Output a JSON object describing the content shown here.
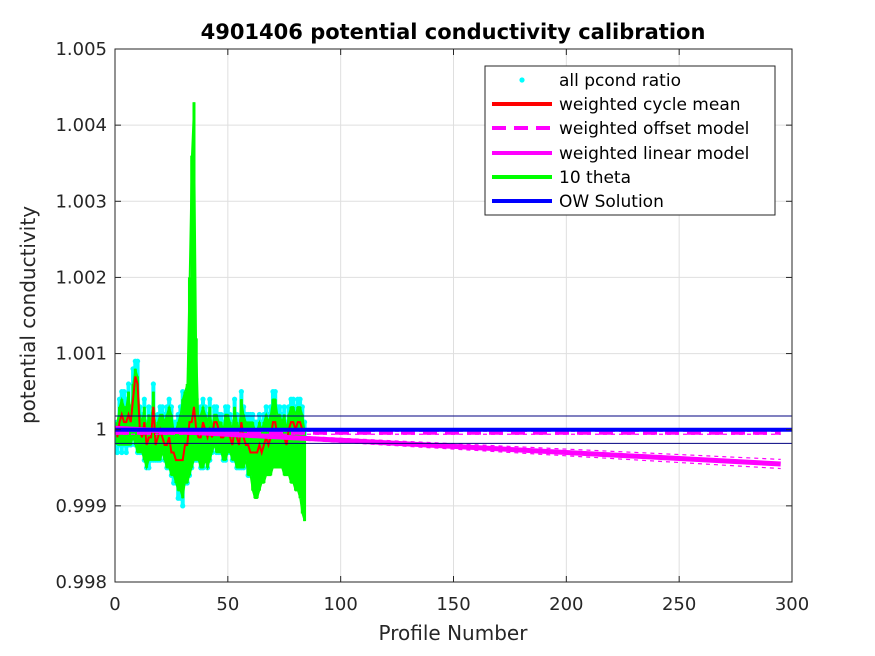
{
  "chart_data": {
    "type": "line",
    "title": "4901406 potential conductivity calibration",
    "xlabel": "Profile Number",
    "ylabel": "potential conductivity",
    "xlim": [
      0,
      300
    ],
    "ylim": [
      0.998,
      1.005
    ],
    "xticks": [
      "0",
      "50",
      "100",
      "150",
      "200",
      "250",
      "300"
    ],
    "yticks": [
      "0.998",
      "0.999",
      "1",
      "1.001",
      "1.002",
      "1.003",
      "1.004",
      "1.005"
    ],
    "xtick_values": [
      0,
      50,
      100,
      150,
      200,
      250,
      300
    ],
    "ytick_values": [
      0.998,
      0.999,
      1.0,
      1.001,
      1.002,
      1.003,
      1.004,
      1.005
    ],
    "grid": true,
    "legend_position": "top-right",
    "legend": [
      {
        "label": "all pcond ratio",
        "style": "dots",
        "color": "#00ffff"
      },
      {
        "label": "weighted cycle mean",
        "style": "solid",
        "color": "#ff0000"
      },
      {
        "label": "weighted offset model",
        "style": "dashed",
        "color": "#ff00ff"
      },
      {
        "label": "weighted linear model",
        "style": "solid",
        "color": "#ff00ff"
      },
      {
        "label": "10 theta",
        "style": "solid",
        "color": "#00ff00"
      },
      {
        "label": "OW Solution",
        "style": "solid",
        "color": "#0000ff"
      }
    ],
    "series": [
      {
        "name": "all pcond ratio",
        "x": [
          1,
          2,
          3,
          4,
          5,
          6,
          7,
          8,
          9,
          10,
          11,
          12,
          13,
          14,
          15,
          16,
          17,
          18,
          19,
          20,
          21,
          22,
          23,
          24,
          25,
          26,
          27,
          28,
          29,
          30,
          31,
          32,
          33,
          34,
          35,
          36,
          37,
          38,
          39,
          40,
          41,
          42,
          43,
          44,
          45,
          46,
          47,
          48,
          49,
          50,
          51,
          52,
          53,
          54,
          55,
          56,
          57,
          58,
          59,
          60,
          61,
          62,
          63,
          64,
          65,
          66,
          67,
          68,
          69,
          70,
          71,
          72,
          73,
          74,
          75,
          76,
          77,
          78,
          79,
          80,
          81,
          82,
          83,
          84
        ],
        "y_upper": [
          1.0001,
          1.0004,
          1.0005,
          1.0005,
          1.0004,
          1.0006,
          1.0003,
          1.0008,
          1.0009,
          1.0009,
          1.0003,
          1.0002,
          1.0004,
          1.0001,
          1.0003,
          1.0002,
          1.0006,
          1.0001,
          1.0002,
          1.0003,
          1.0003,
          1.0002,
          1.0003,
          1.0004,
          1.0003,
          1.0001,
          1.0001,
          1.0002,
          1.0003,
          1.0005,
          1.0004,
          1.0003,
          1.0008,
          1.0007,
          1.0009,
          1.0004,
          1.0002,
          1.0003,
          1.0004,
          1.0003,
          1.0002,
          1.0004,
          1.0001,
          1.0003,
          1.0003,
          1.0002,
          1.0002,
          1.0001,
          1.0003,
          1.0003,
          1.0002,
          1.0001,
          1.0004,
          1.0002,
          1.0001,
          1.0005,
          1.0003,
          1.0002,
          1.0002,
          1.0002,
          1.0002,
          1.0001,
          1.0001,
          1.0002,
          1.0001,
          1.0002,
          1.0003,
          1.0002,
          1.0003,
          1.0005,
          1.0005,
          1.0003,
          1.0003,
          1.0002,
          1.0003,
          1.0001,
          1.0003,
          1.0004,
          1.0004,
          1.0003,
          1.0004,
          1.0004,
          1.0003,
          1.0001
        ],
        "y_lower": [
          0.9997,
          0.9998,
          0.9997,
          0.9998,
          0.9997,
          0.9998,
          0.9998,
          0.9999,
          0.9998,
          0.9997,
          0.9997,
          0.9997,
          0.9996,
          0.9995,
          0.9995,
          0.9996,
          0.9996,
          0.9996,
          0.9996,
          0.9996,
          0.9997,
          0.9996,
          0.9995,
          0.9995,
          0.9994,
          0.9993,
          0.9993,
          0.9991,
          0.9991,
          0.999,
          0.9993,
          0.9993,
          0.9994,
          0.9995,
          0.9996,
          0.9996,
          0.9996,
          0.9995,
          0.9995,
          0.9996,
          0.9995,
          0.9996,
          0.9997,
          0.9998,
          0.9997,
          0.9997,
          0.9997,
          0.9996,
          0.9996,
          0.9997,
          0.9997,
          0.9996,
          0.9996,
          0.9995,
          0.9995,
          0.9995,
          0.9995,
          0.9996,
          0.9994,
          0.9994,
          0.9994,
          0.9994,
          0.9994,
          0.9995,
          0.9995,
          0.9995,
          0.9996,
          0.9996,
          0.9996,
          0.9996,
          0.9996,
          0.9996,
          0.9996,
          0.9996,
          0.9995,
          0.9996,
          0.9997,
          0.9997,
          0.9997,
          0.9998,
          0.9998,
          0.9998,
          0.9998,
          0.9999
        ]
      },
      {
        "name": "weighted cycle mean",
        "x": [
          1,
          2,
          3,
          4,
          5,
          6,
          7,
          8,
          9,
          10,
          11,
          12,
          13,
          14,
          15,
          16,
          17,
          18,
          19,
          20,
          21,
          22,
          23,
          24,
          25,
          26,
          27,
          28,
          29,
          30,
          31,
          32,
          33,
          34,
          35,
          36,
          37,
          38,
          39,
          40,
          41,
          42,
          43,
          44,
          45,
          46,
          47,
          48,
          49,
          50,
          51,
          52,
          53,
          54,
          55,
          56,
          57,
          58,
          59,
          60,
          61,
          62,
          63,
          64,
          65,
          66,
          67,
          68,
          69,
          70,
          71,
          72,
          73,
          74,
          75,
          76,
          77,
          78,
          79,
          80,
          81,
          82,
          83,
          84
        ],
        "y": [
          0.9999,
          1.0001,
          1.0002,
          1.0001,
          1.0001,
          1.0002,
          1.0001,
          1.0004,
          1.0007,
          1.0006,
          1.0,
          0.9999,
          1.0001,
          0.9998,
          0.9999,
          0.9999,
          1.0003,
          0.9998,
          0.9999,
          1.0,
          0.9999,
          0.9998,
          0.9998,
          0.9999,
          0.9997,
          0.9997,
          0.9996,
          0.9996,
          0.9996,
          0.9996,
          0.9998,
          0.9998,
          1.0001,
          1.0001,
          1.0003,
          1.0,
          0.9999,
          0.9999,
          1.0001,
          1.0,
          0.9999,
          1.0,
          0.9999,
          1.0001,
          1.0001,
          1.0,
          0.9999,
          0.9999,
          1.0,
          1.0,
          0.9999,
          0.9998,
          1.0,
          0.9999,
          0.9998,
          1.0001,
          0.9999,
          0.9998,
          0.9998,
          0.9997,
          0.9997,
          0.9997,
          0.9997,
          0.9998,
          0.9997,
          0.9998,
          0.9999,
          0.9998,
          0.9999,
          1.0001,
          1.0001,
          0.9999,
          0.9999,
          0.9999,
          0.9999,
          0.9998,
          1.0,
          1.0001,
          1.0001,
          1.0,
          1.0001,
          1.0001,
          1.0,
          1.0
        ]
      },
      {
        "name": "10 theta",
        "x": [
          1,
          2,
          3,
          4,
          5,
          6,
          7,
          8,
          9,
          10,
          11,
          12,
          13,
          14,
          15,
          16,
          17,
          18,
          19,
          20,
          21,
          22,
          23,
          24,
          25,
          26,
          27,
          28,
          29,
          30,
          31,
          32,
          33,
          34,
          35,
          36,
          37,
          38,
          39,
          40,
          41,
          42,
          43,
          44,
          45,
          46,
          47,
          48,
          49,
          50,
          51,
          52,
          53,
          54,
          55,
          56,
          57,
          58,
          59,
          60,
          61,
          62,
          63,
          64,
          65,
          66,
          67,
          68,
          69,
          70,
          71,
          72,
          73,
          74,
          75,
          76,
          77,
          78,
          79,
          80,
          81,
          82,
          83,
          84
        ],
        "y_upper": [
          1.0001,
          1.0003,
          1.0004,
          1.0003,
          1.0003,
          1.0005,
          1.0002,
          1.0006,
          1.0008,
          1.0007,
          1.0002,
          1.0001,
          1.0003,
          1.0,
          1.0002,
          1.0001,
          1.0005,
          1.0,
          1.0001,
          1.0002,
          1.0002,
          1.0001,
          1.0002,
          1.0003,
          1.0002,
          1.0,
          1.0,
          1.0001,
          1.0002,
          1.0004,
          1.0005,
          1.0006,
          1.002,
          1.0036,
          1.0043,
          1.0012,
          1.0001,
          1.0002,
          1.0003,
          1.0002,
          1.0001,
          1.0003,
          1.0,
          1.0002,
          1.0002,
          1.0001,
          1.0001,
          1.0,
          1.0002,
          1.0002,
          1.0001,
          1.0,
          1.0003,
          1.0001,
          1.0,
          1.0004,
          1.0002,
          1.0001,
          1.0001,
          1.0001,
          1.0001,
          1.0,
          1.0,
          1.0001,
          1.0,
          1.0001,
          1.0002,
          1.0001,
          1.0002,
          1.0004,
          1.0004,
          1.0002,
          1.0002,
          1.0001,
          1.0002,
          1.0,
          1.0002,
          1.0003,
          1.0003,
          1.0002,
          1.0003,
          1.0003,
          1.0002,
          1.0
        ],
        "y_lower": [
          0.9998,
          0.9998,
          0.9998,
          0.9998,
          0.9998,
          0.9998,
          0.9998,
          0.9999,
          0.9998,
          0.9997,
          0.9997,
          0.9997,
          0.9996,
          0.9995,
          0.9996,
          0.9996,
          0.9996,
          0.9996,
          0.9996,
          0.9996,
          0.9997,
          0.9996,
          0.9995,
          0.9995,
          0.9994,
          0.9994,
          0.9993,
          0.9992,
          0.9992,
          0.9991,
          0.9993,
          0.9993,
          0.9994,
          0.9995,
          0.9996,
          0.9996,
          0.9996,
          0.9995,
          0.9995,
          0.9996,
          0.9995,
          0.9996,
          0.9997,
          0.9998,
          0.9997,
          0.9997,
          0.9997,
          0.9996,
          0.9996,
          0.9997,
          0.9997,
          0.9996,
          0.9996,
          0.9995,
          0.9995,
          0.9995,
          0.9995,
          0.9996,
          0.9994,
          0.9994,
          0.9992,
          0.9991,
          0.9991,
          0.9992,
          0.9993,
          0.9993,
          0.9994,
          0.9994,
          0.9994,
          0.9995,
          0.9995,
          0.9995,
          0.9995,
          0.9995,
          0.9994,
          0.9994,
          0.9994,
          0.9993,
          0.9993,
          0.9992,
          0.9992,
          0.9991,
          0.9989,
          0.9988
        ]
      },
      {
        "name": "weighted offset model",
        "x": [
          0,
          295
        ],
        "y": [
          0.99996,
          0.99996
        ],
        "band": 2e-05
      },
      {
        "name": "weighted linear model",
        "x": [
          0,
          295
        ],
        "y": [
          1.00002,
          0.99955
        ],
        "band_start": 1e-05,
        "band_end": 6e-05
      },
      {
        "name": "OW Solution",
        "x": [
          0,
          300
        ],
        "y": [
          1.0,
          1.0
        ],
        "err": 0.00018
      }
    ]
  }
}
